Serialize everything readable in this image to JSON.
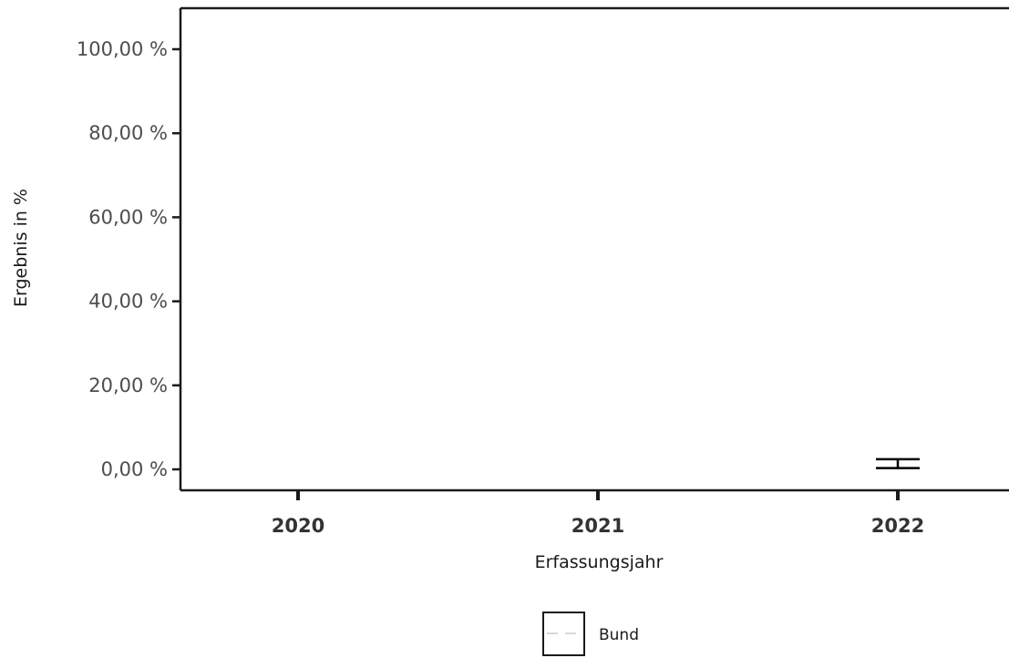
{
  "chart_data": {
    "type": "line",
    "title": "",
    "xlabel": "Erfassungsjahr",
    "ylabel": "Ergebnis in %",
    "categories": [
      "2020",
      "2021",
      "2022"
    ],
    "ylim": [
      0,
      100
    ],
    "y_ticks": [
      0,
      20,
      40,
      60,
      80,
      100
    ],
    "y_tick_labels": [
      "0,00 %",
      "20,00 %",
      "40,00 %",
      "60,00 %",
      "80,00 %",
      "100,00 %"
    ],
    "series": [
      {
        "name": "Bund",
        "style": "dashed",
        "color": "#d9d9d9",
        "values": [
          null,
          null,
          1.2
        ]
      }
    ],
    "error_bars": [
      {
        "category": "2022",
        "low": 0.3,
        "high": 2.4
      }
    ],
    "grid": false,
    "legend_position": "bottom"
  }
}
